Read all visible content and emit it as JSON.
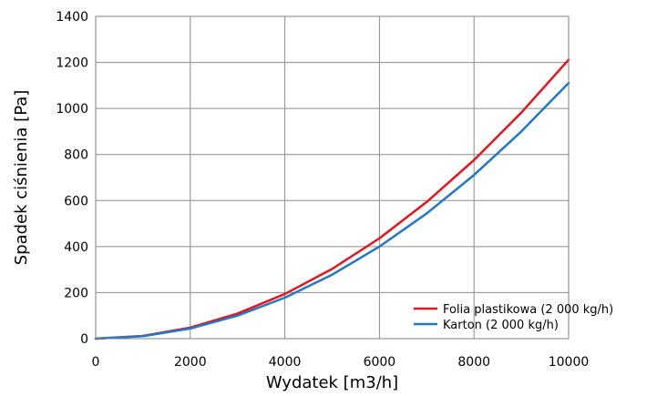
{
  "chart_data": {
    "type": "line",
    "title": "",
    "xlabel": "Wydatek [m3/h]",
    "ylabel": "Spadek ciśnienia [Pa]",
    "xlim": [
      0,
      10000
    ],
    "ylim": [
      0,
      1400
    ],
    "xticks": [
      0,
      2000,
      4000,
      6000,
      8000,
      10000
    ],
    "yticks": [
      0,
      200,
      400,
      600,
      800,
      1000,
      1200,
      1400
    ],
    "grid": true,
    "legend_position": "bottom-right",
    "series": [
      {
        "name": "Folia plastikowa (2 000 kg/h)",
        "color": "#e8141c",
        "x": [
          0,
          1000,
          2000,
          3000,
          4000,
          5000,
          6000,
          7000,
          8000,
          9000,
          10000
        ],
        "y": [
          0,
          12,
          48,
          109,
          194,
          303,
          436,
          594,
          776,
          982,
          1212
        ]
      },
      {
        "name": "Karton (2 000 kg/h)",
        "color": "#1f78c8",
        "x": [
          0,
          1000,
          2000,
          3000,
          4000,
          5000,
          6000,
          7000,
          8000,
          9000,
          10000
        ],
        "y": [
          0,
          11,
          44,
          100,
          178,
          278,
          400,
          544,
          711,
          900,
          1111
        ]
      }
    ]
  }
}
